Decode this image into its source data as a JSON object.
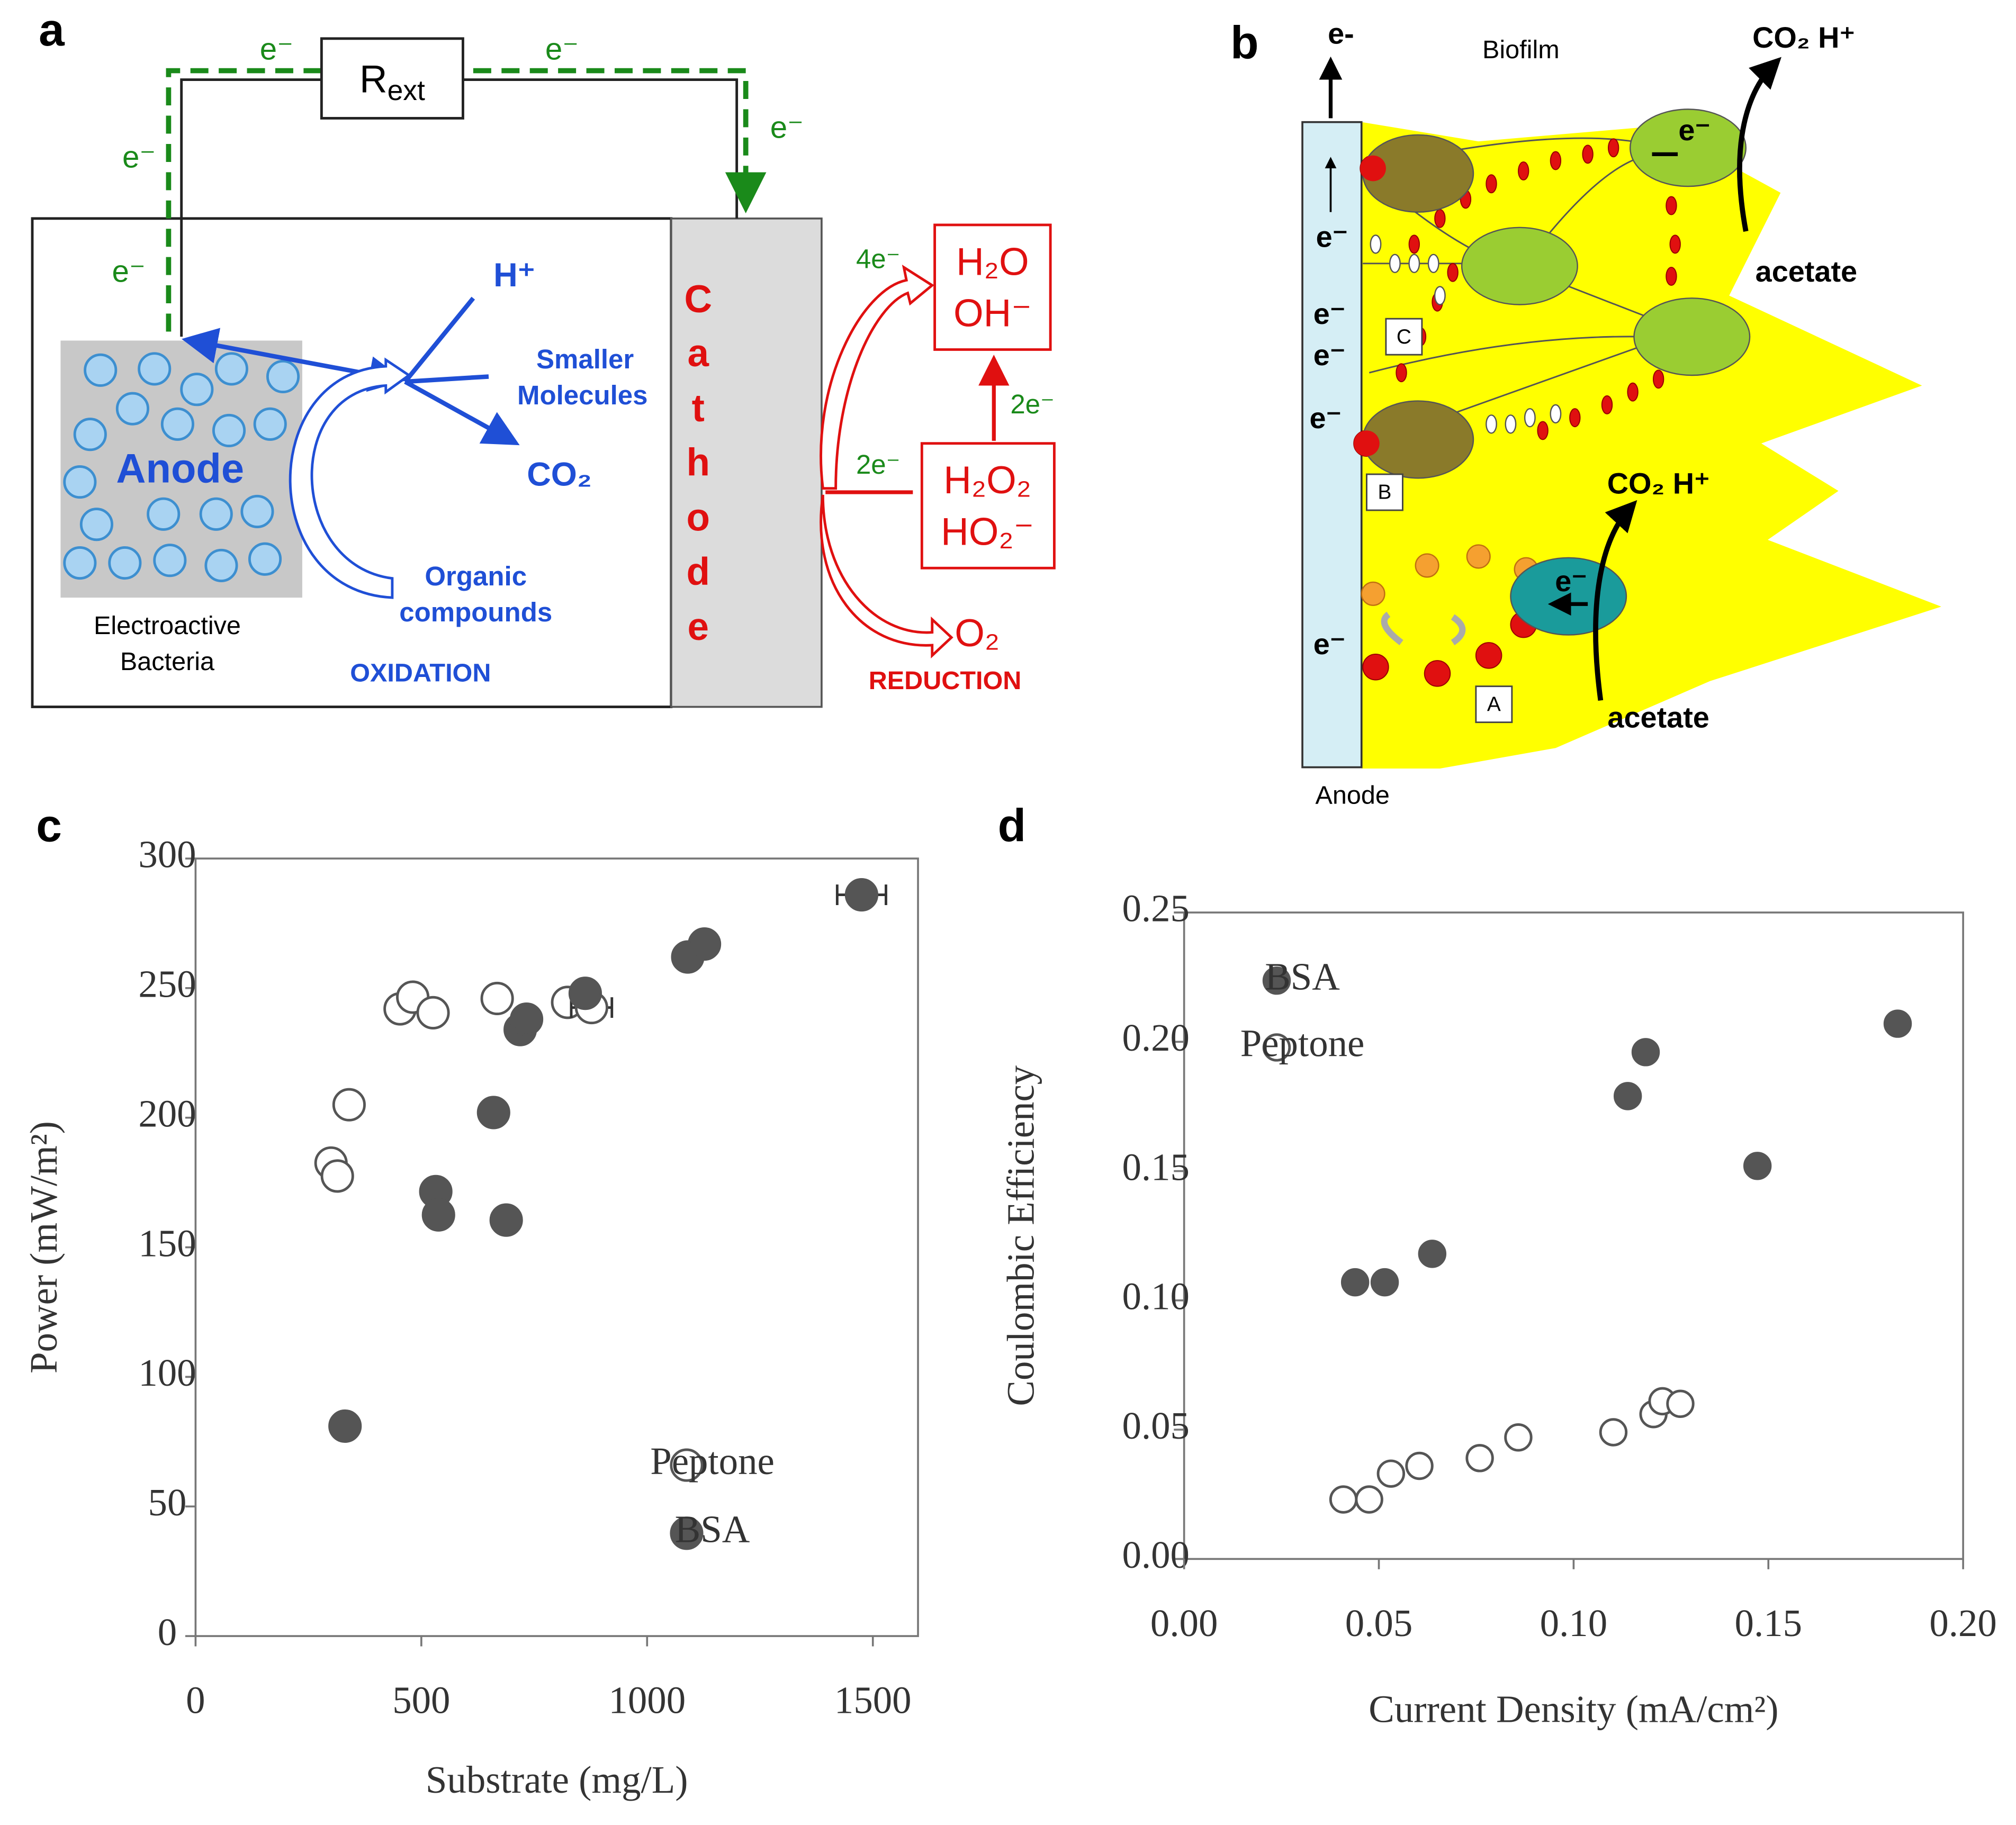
{
  "panels": {
    "a": {
      "label": "a",
      "wire_labels": [
        "e⁻",
        "e⁻",
        "e⁻",
        "e⁻",
        "e⁻"
      ],
      "resistor": {
        "symbol": "R",
        "subscript": "ext"
      },
      "anode": "Anode",
      "bacteria": [
        "Electroactive",
        "Bacteria"
      ],
      "products": {
        "proton": "H⁺",
        "molecules": [
          "Smaller",
          "Molecules"
        ],
        "co2": "CO₂"
      },
      "substrate": [
        "Organic",
        "compounds"
      ],
      "oxidation": "OXIDATION",
      "cathode": [
        "C",
        "a",
        "t",
        "h",
        "o",
        "d",
        "e"
      ],
      "reduction": {
        "electrons": [
          "4e⁻",
          "2e⁻",
          "2e⁻"
        ],
        "water": [
          "H₂O",
          "OH⁻"
        ],
        "peroxide": [
          "H₂O₂",
          "HO₂⁻"
        ],
        "oxygen": "O₂",
        "label": "REDUCTION"
      }
    },
    "b": {
      "label": "b",
      "electron_out": "e-",
      "biofilm": "Biofilm",
      "top_products": "CO₂ H⁺",
      "cell_electron": "e⁻",
      "top_substrate": "acetate",
      "anode_electrons": [
        "e⁻",
        "e⁻",
        "e⁻",
        "e⁻",
        "e⁻"
      ],
      "sites": [
        "C",
        "B",
        "A"
      ],
      "bottom_products": "CO₂ H⁺",
      "bottom_electron": "e⁻",
      "bottom_substrate": "acetate",
      "anode": "Anode"
    }
  },
  "chart_data": [
    {
      "type": "scatter",
      "panel": "c",
      "xlabel": "Substrate (mg/L)",
      "ylabel": "Power (mW/m²)",
      "xlim": [
        0,
        1600
      ],
      "xticks": [
        0,
        500,
        1000,
        1500
      ],
      "ylim": [
        0,
        300
      ],
      "yticks": [
        0,
        50,
        100,
        150,
        200,
        250,
        300
      ],
      "legend": "lower right",
      "series": [
        {
          "name": "Peptone",
          "color": "#555555",
          "marker": "open",
          "x": [
            300,
            314,
            340,
            453,
            481,
            526,
            668,
            824,
            877
          ],
          "values": [
            182.5,
            177.5,
            205,
            242,
            246.5,
            240.5,
            246,
            244.5,
            242.5
          ],
          "xerr": [
            null,
            null,
            null,
            null,
            null,
            null,
            null,
            null,
            45
          ]
        },
        {
          "name": "BSA",
          "color": "#555555",
          "marker": "filled",
          "x": [
            331,
            532,
            538,
            660,
            688,
            719,
            733,
            863,
            1090,
            1127,
            1475
          ],
          "values": [
            81,
            171.5,
            162.5,
            202,
            160.5,
            234,
            238,
            248,
            262,
            267,
            286
          ],
          "xerr": [
            null,
            null,
            null,
            null,
            null,
            null,
            null,
            null,
            null,
            null,
            54
          ]
        }
      ]
    },
    {
      "type": "scatter",
      "panel": "d",
      "xlabel": "Current Density (mA/cm²)",
      "ylabel": "Coulombic Efficiency",
      "xlim": [
        0,
        0.2
      ],
      "xticks": [
        {
          "value": 0,
          "label": "0.00"
        },
        {
          "value": 0.05,
          "label": "0.05"
        },
        {
          "value": 0.1,
          "label": "0.10"
        },
        {
          "value": 0.15,
          "label": "0.15"
        },
        {
          "value": 0.2,
          "label": "0.20"
        }
      ],
      "ylim": [
        0,
        0.25
      ],
      "yticks": [
        {
          "value": 0,
          "label": "0.00"
        },
        {
          "value": 0.05,
          "label": "0.05"
        },
        {
          "value": 0.1,
          "label": "0.10"
        },
        {
          "value": 0.15,
          "label": "0.15"
        },
        {
          "value": 0.2,
          "label": "0.20"
        },
        {
          "value": 0.25,
          "label": "0.25"
        }
      ],
      "legend": "upper left",
      "series": [
        {
          "name": "BSA",
          "color": "#555555",
          "marker": "filled",
          "x": [
            0.0439,
            0.0515,
            0.0637,
            0.1139,
            0.1185,
            0.1472,
            0.1832
          ],
          "values": [
            0.107,
            0.107,
            0.118,
            0.179,
            0.196,
            0.152,
            0.207
          ]
        },
        {
          "name": "Peptone",
          "color": "#555555",
          "marker": "open",
          "x": [
            0.0409,
            0.0475,
            0.0531,
            0.0604,
            0.0759,
            0.0858,
            0.1102,
            0.1205,
            0.1228,
            0.1274
          ],
          "values": [
            0.023,
            0.023,
            0.033,
            0.036,
            0.039,
            0.047,
            0.049,
            0.056,
            0.061,
            0.06
          ]
        }
      ]
    }
  ]
}
